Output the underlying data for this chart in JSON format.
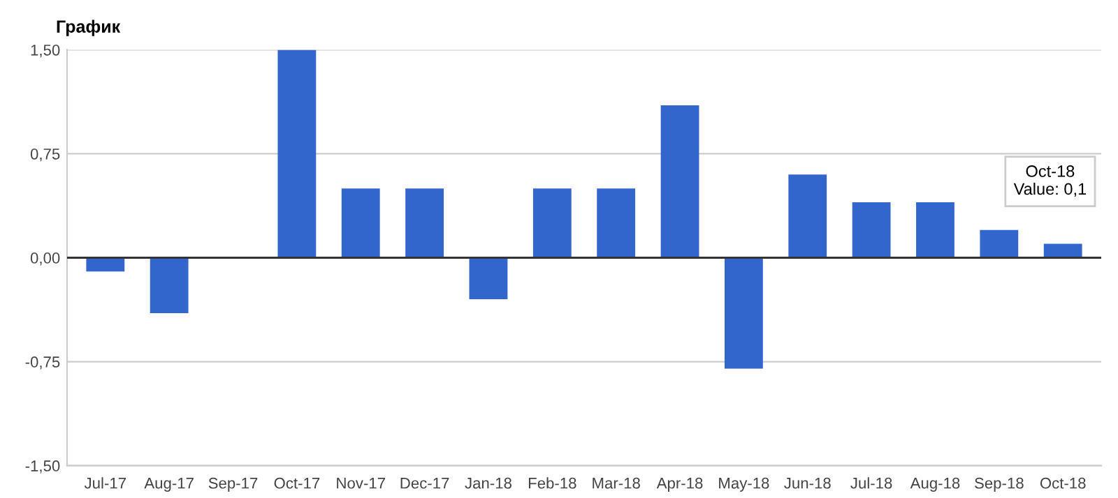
{
  "chart_data": {
    "type": "bar",
    "title": "График",
    "categories": [
      "Jul-17",
      "Aug-17",
      "Sep-17",
      "Oct-17",
      "Nov-17",
      "Dec-17",
      "Jan-18",
      "Feb-18",
      "Mar-18",
      "Apr-18",
      "May-18",
      "Jun-18",
      "Jul-18",
      "Aug-18",
      "Sep-18",
      "Oct-18"
    ],
    "values": [
      -0.1,
      -0.4,
      0,
      1.5,
      0.5,
      0.5,
      -0.3,
      0.5,
      0.5,
      1.1,
      -0.8,
      0.6,
      0.4,
      0.4,
      0.2,
      0.1
    ],
    "color": "#3366cc",
    "ylim": [
      -1.5,
      1.5
    ],
    "yticks": [
      {
        "value": -1.5,
        "label": "-1,50"
      },
      {
        "value": -0.75,
        "label": "-0,75"
      },
      {
        "value": 0,
        "label": "0,00"
      },
      {
        "value": 0.75,
        "label": "0,75"
      },
      {
        "value": 1.5,
        "label": "1,50"
      }
    ],
    "grid": "y",
    "annotations": [
      {
        "text": "Oct-18\nValue: 0,1",
        "x": "Oct-18",
        "y": 0.1
      }
    ]
  }
}
